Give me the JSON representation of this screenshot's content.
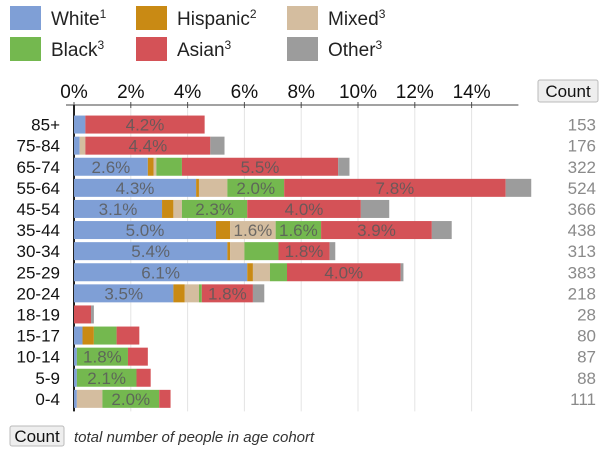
{
  "legend": [
    {
      "name": "White",
      "sup": "1",
      "color": "#7f9fd6"
    },
    {
      "name": "Hispanic",
      "sup": "2",
      "color": "#c98a14"
    },
    {
      "name": "Mixed",
      "sup": "3",
      "color": "#d4bd9f"
    },
    {
      "name": "Black",
      "sup": "3",
      "color": "#74b84f"
    },
    {
      "name": "Asian",
      "sup": "3",
      "color": "#d45257"
    },
    {
      "name": "Other",
      "sup": "3",
      "color": "#9c9c9c"
    }
  ],
  "count_header": "Count",
  "footnote": {
    "box_label": "Count",
    "text": "total number of people in age cohort"
  },
  "chart_data": {
    "type": "bar",
    "orientation": "horizontal",
    "stacked": true,
    "xlim": [
      0,
      16
    ],
    "x_ticks": [
      "0%",
      "2%",
      "4%",
      "6%",
      "8%",
      "10%",
      "12%",
      "14%"
    ],
    "x_tick_values": [
      0,
      2,
      4,
      6,
      8,
      10,
      12,
      14
    ],
    "legend_position": "top",
    "categories": [
      "85+",
      "75-84",
      "65-74",
      "55-64",
      "45-54",
      "35-44",
      "30-34",
      "25-29",
      "20-24",
      "18-19",
      "15-17",
      "10-14",
      "5-9",
      "0-4"
    ],
    "counts": [
      "153",
      "176",
      "322",
      "524",
      "366",
      "438",
      "313",
      "383",
      "218",
      "28",
      "80",
      "87",
      "88",
      "111"
    ],
    "series": [
      {
        "name": "White",
        "values": [
          0.4,
          0.2,
          2.6,
          4.3,
          3.1,
          5.0,
          5.4,
          6.1,
          3.5,
          0.0,
          0.3,
          0.1,
          0.1,
          0.1
        ]
      },
      {
        "name": "Hispanic",
        "values": [
          0.0,
          0.0,
          0.2,
          0.1,
          0.4,
          0.5,
          0.1,
          0.2,
          0.4,
          0.0,
          0.4,
          0.0,
          0.0,
          0.0
        ]
      },
      {
        "name": "Mixed",
        "values": [
          0.0,
          0.2,
          0.1,
          1.0,
          0.3,
          1.6,
          0.5,
          0.6,
          0.5,
          0.0,
          0.0,
          0.0,
          0.0,
          0.9
        ]
      },
      {
        "name": "Black",
        "values": [
          0.0,
          0.0,
          0.9,
          2.0,
          2.3,
          1.6,
          1.2,
          0.6,
          0.1,
          0.0,
          0.8,
          1.8,
          2.1,
          2.0
        ]
      },
      {
        "name": "Asian",
        "values": [
          4.2,
          4.4,
          5.5,
          7.8,
          4.0,
          3.9,
          1.8,
          4.0,
          1.8,
          0.6,
          0.8,
          0.7,
          0.5,
          0.4
        ]
      },
      {
        "name": "Other",
        "values": [
          0.0,
          0.5,
          0.4,
          0.9,
          1.0,
          0.7,
          0.2,
          0.1,
          0.4,
          0.1,
          0.0,
          0.0,
          0.0,
          0.0
        ]
      }
    ],
    "labels": [
      {
        "row": "85+",
        "series": "Asian",
        "text": "4.2%"
      },
      {
        "row": "75-84",
        "series": "Asian",
        "text": "4.4%"
      },
      {
        "row": "65-74",
        "series": "White",
        "text": "2.6%"
      },
      {
        "row": "65-74",
        "series": "Asian",
        "text": "5.5%"
      },
      {
        "row": "55-64",
        "series": "White",
        "text": "4.3%"
      },
      {
        "row": "55-64",
        "series": "Black",
        "text": "2.0%"
      },
      {
        "row": "55-64",
        "series": "Asian",
        "text": "7.8%"
      },
      {
        "row": "45-54",
        "series": "White",
        "text": "3.1%"
      },
      {
        "row": "45-54",
        "series": "Black",
        "text": "2.3%"
      },
      {
        "row": "45-54",
        "series": "Asian",
        "text": "4.0%"
      },
      {
        "row": "35-44",
        "series": "White",
        "text": "5.0%"
      },
      {
        "row": "35-44",
        "series": "Mixed",
        "text": "1.6%"
      },
      {
        "row": "35-44",
        "series": "Black",
        "text": "1.6%"
      },
      {
        "row": "35-44",
        "series": "Asian",
        "text": "3.9%"
      },
      {
        "row": "30-34",
        "series": "White",
        "text": "5.4%"
      },
      {
        "row": "30-34",
        "series": "Asian",
        "text": "1.8%"
      },
      {
        "row": "25-29",
        "series": "White",
        "text": "6.1%"
      },
      {
        "row": "25-29",
        "series": "Asian",
        "text": "4.0%"
      },
      {
        "row": "20-24",
        "series": "White",
        "text": "3.5%"
      },
      {
        "row": "20-24",
        "series": "Asian",
        "text": "1.8%"
      },
      {
        "row": "10-14",
        "series": "Black",
        "text": "1.8%"
      },
      {
        "row": "5-9",
        "series": "Black",
        "text": "2.1%"
      },
      {
        "row": "0-4",
        "series": "Black",
        "text": "2.0%"
      }
    ]
  }
}
